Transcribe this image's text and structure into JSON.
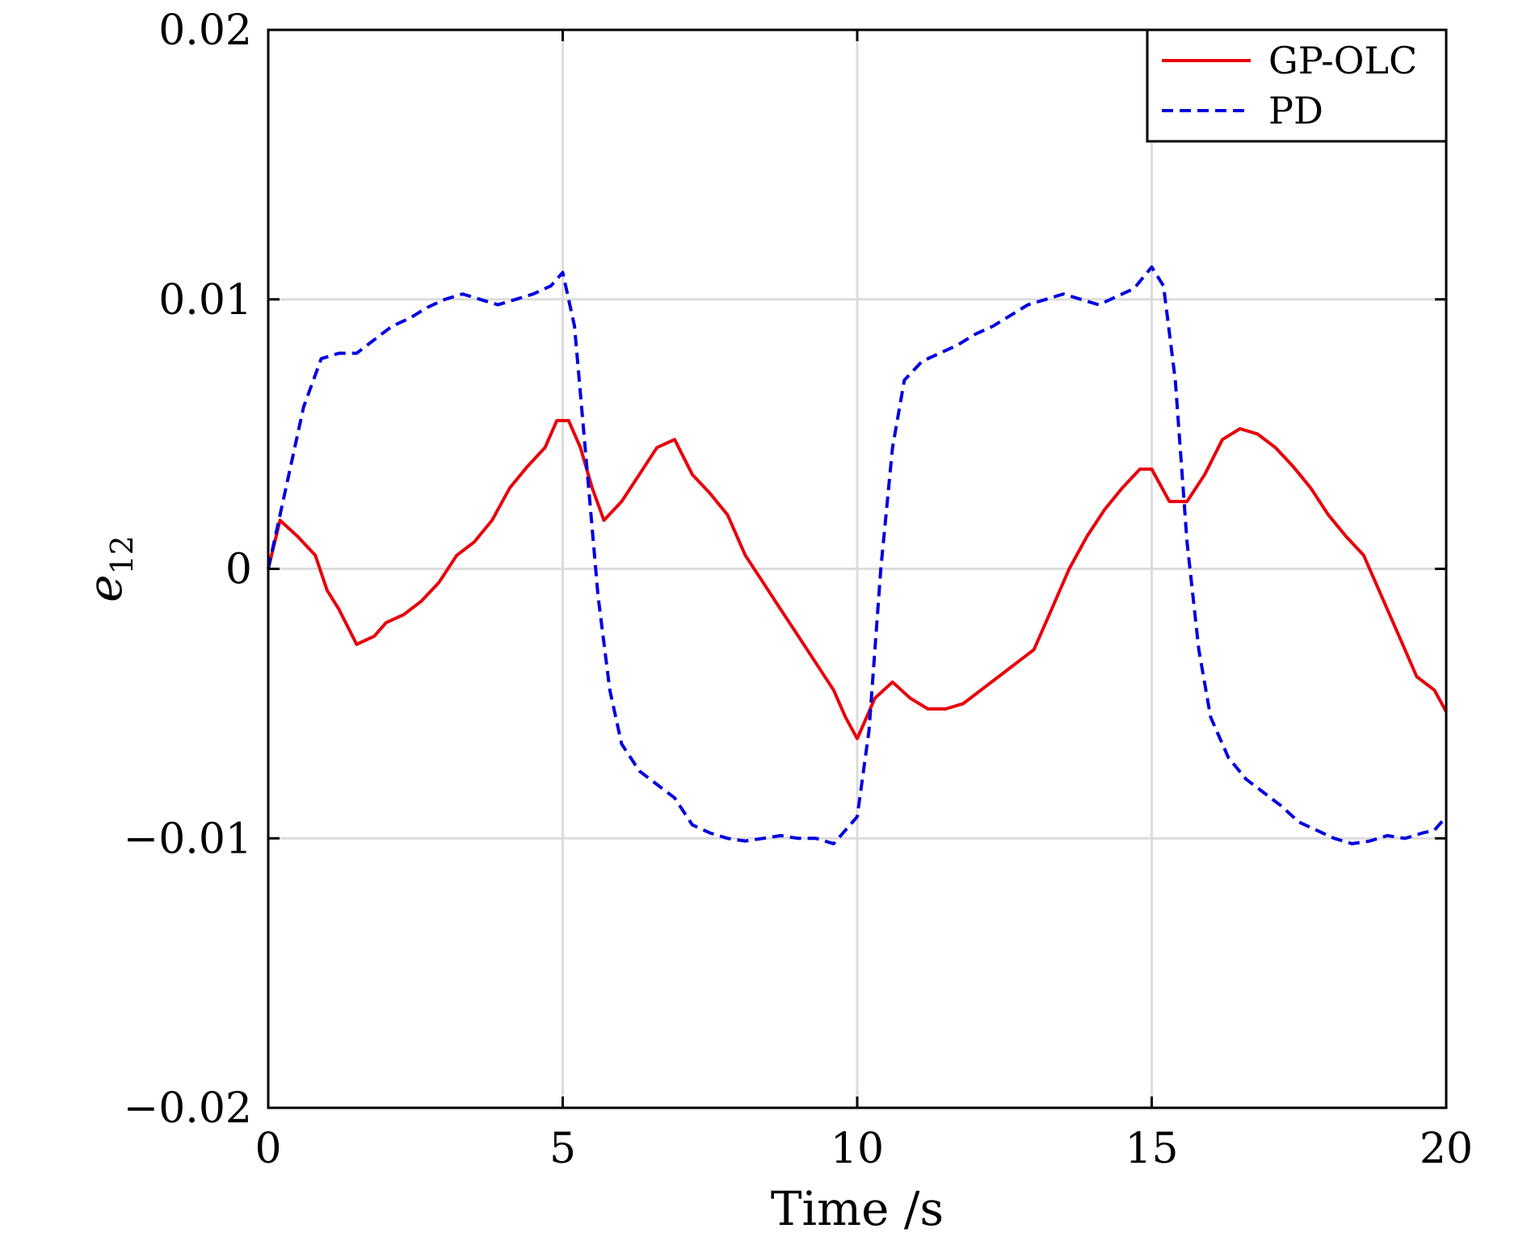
{
  "chart_data": {
    "type": "line",
    "title": "",
    "xlabel": "Time /s",
    "ylabel": "e",
    "ylabel_subscript": "12",
    "xlim": [
      0,
      20
    ],
    "ylim": [
      -0.02,
      0.02
    ],
    "xticks": [
      0,
      5,
      10,
      15,
      20
    ],
    "yticks": [
      -0.02,
      -0.01,
      0,
      0.01,
      0.02
    ],
    "xtick_labels": [
      "0",
      "5",
      "10",
      "15",
      "20"
    ],
    "ytick_labels": [
      "−0.02",
      "−0.01",
      "0",
      "0.01",
      "0.02"
    ],
    "grid": true,
    "legend_position": "top-right",
    "series": [
      {
        "name": "GP-OLC",
        "color": "#e8000b",
        "style": "solid",
        "x": [
          0,
          0.2,
          0.5,
          0.8,
          1.0,
          1.2,
          1.5,
          1.8,
          2.0,
          2.3,
          2.6,
          2.9,
          3.2,
          3.5,
          3.8,
          4.1,
          4.4,
          4.7,
          4.9,
          5.1,
          5.3,
          5.5,
          5.7,
          6.0,
          6.3,
          6.6,
          6.9,
          7.2,
          7.5,
          7.8,
          8.1,
          8.4,
          8.7,
          9.0,
          9.3,
          9.6,
          9.8,
          10.0,
          10.3,
          10.6,
          10.9,
          11.2,
          11.5,
          11.8,
          12.1,
          12.4,
          12.7,
          13.0,
          13.3,
          13.6,
          13.9,
          14.2,
          14.5,
          14.8,
          15.0,
          15.3,
          15.6,
          15.9,
          16.2,
          16.5,
          16.8,
          17.1,
          17.4,
          17.7,
          18.0,
          18.3,
          18.6,
          18.9,
          19.2,
          19.5,
          19.8,
          20.0
        ],
        "y": [
          0,
          0.0018,
          0.0012,
          0.0005,
          -0.0008,
          -0.0015,
          -0.0028,
          -0.0025,
          -0.002,
          -0.0017,
          -0.0012,
          -0.0005,
          0.0005,
          0.001,
          0.0018,
          0.003,
          0.0038,
          0.0045,
          0.0055,
          0.0055,
          0.0045,
          0.003,
          0.0018,
          0.0025,
          0.0035,
          0.0045,
          0.0048,
          0.0035,
          0.0028,
          0.002,
          0.0005,
          -0.0005,
          -0.0015,
          -0.0025,
          -0.0035,
          -0.0045,
          -0.0055,
          -0.0063,
          -0.0048,
          -0.0042,
          -0.0048,
          -0.0052,
          -0.0052,
          -0.005,
          -0.0045,
          -0.004,
          -0.0035,
          -0.003,
          -0.0015,
          0,
          0.0012,
          0.0022,
          0.003,
          0.0037,
          0.0037,
          0.0025,
          0.0025,
          0.0035,
          0.0048,
          0.0052,
          0.005,
          0.0045,
          0.0038,
          0.003,
          0.002,
          0.0012,
          0.0005,
          -0.001,
          -0.0025,
          -0.004,
          -0.0045,
          -0.0053
        ]
      },
      {
        "name": "PD",
        "color": "#0000e0",
        "style": "dashed",
        "x": [
          0,
          0.3,
          0.6,
          0.9,
          1.2,
          1.5,
          1.8,
          2.1,
          2.4,
          2.7,
          3.0,
          3.3,
          3.6,
          3.9,
          4.2,
          4.5,
          4.8,
          5.0,
          5.2,
          5.4,
          5.6,
          5.8,
          6.0,
          6.3,
          6.6,
          6.9,
          7.2,
          7.5,
          7.8,
          8.1,
          8.4,
          8.7,
          9.0,
          9.3,
          9.6,
          9.8,
          10.0,
          10.2,
          10.4,
          10.6,
          10.8,
          11.1,
          11.4,
          11.7,
          12.0,
          12.3,
          12.6,
          12.9,
          13.2,
          13.5,
          13.8,
          14.1,
          14.4,
          14.7,
          15.0,
          15.2,
          15.4,
          15.6,
          15.8,
          16.0,
          16.3,
          16.6,
          16.9,
          17.2,
          17.5,
          17.8,
          18.1,
          18.4,
          18.7,
          19.0,
          19.3,
          19.6,
          19.8,
          20.0
        ],
        "y": [
          0,
          0.003,
          0.006,
          0.0078,
          0.008,
          0.008,
          0.0085,
          0.009,
          0.0093,
          0.0097,
          0.01,
          0.0102,
          0.01,
          0.0098,
          0.01,
          0.0102,
          0.0105,
          0.011,
          0.009,
          0.004,
          -0.001,
          -0.0045,
          -0.0065,
          -0.0075,
          -0.008,
          -0.0085,
          -0.0095,
          -0.0098,
          -0.01,
          -0.0101,
          -0.01,
          -0.0099,
          -0.01,
          -0.01,
          -0.0102,
          -0.0097,
          -0.0092,
          -0.006,
          0,
          0.0045,
          0.007,
          0.0077,
          0.008,
          0.0083,
          0.0087,
          0.009,
          0.0094,
          0.0098,
          0.01,
          0.0102,
          0.01,
          0.0098,
          0.0101,
          0.0104,
          0.0112,
          0.0105,
          0.007,
          0.001,
          -0.003,
          -0.0055,
          -0.007,
          -0.0078,
          -0.0083,
          -0.0088,
          -0.0094,
          -0.0097,
          -0.01,
          -0.0102,
          -0.0101,
          -0.0099,
          -0.01,
          -0.0098,
          -0.0097,
          -0.0092
        ]
      }
    ]
  }
}
